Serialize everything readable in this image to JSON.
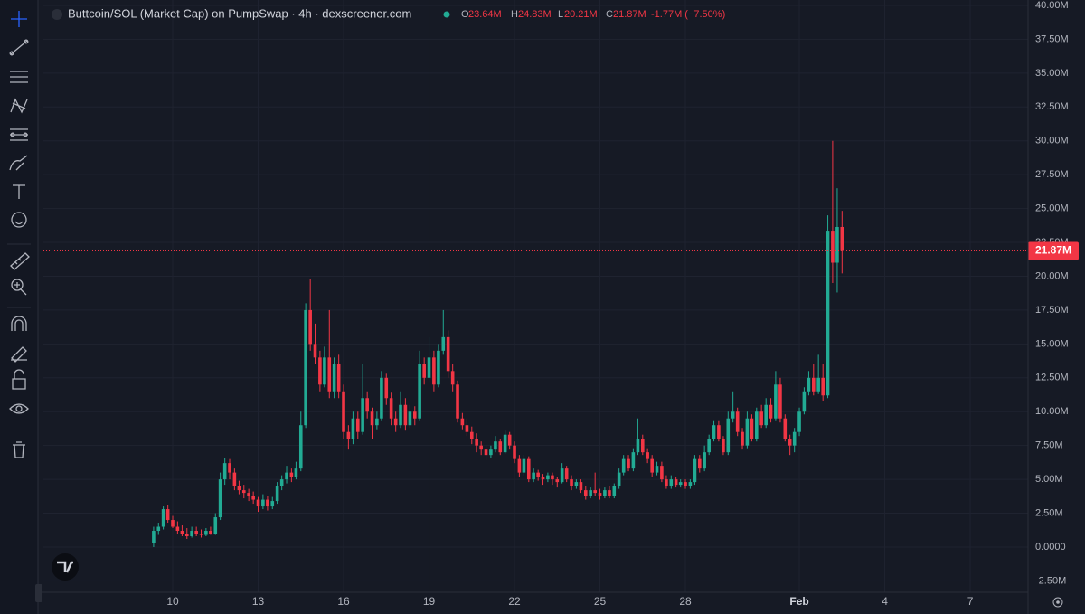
{
  "chart_data": {
    "type": "candlestick",
    "title": "Buttcoin/SOL (Market Cap) on PumpSwap · 4h · dexscreener.com",
    "legend": {
      "o_label": "O",
      "o": "23.64M",
      "h_label": "H",
      "h": "24.83M",
      "l_label": "L",
      "l": "20.21M",
      "c_label": "C",
      "c": "21.87M",
      "change": "-1.77M (−7.50%)"
    },
    "last_price_label": "21.87M",
    "up_color": "#22ab94",
    "down_color": "#f23645",
    "grid": true,
    "xlim": [
      5.46,
      40.03
    ],
    "xticks": [
      10,
      13,
      16,
      19,
      22,
      25,
      28,
      {
        "value": 32,
        "label": "Feb"
      },
      {
        "value": 35,
        "label": "4"
      },
      {
        "value": 38,
        "label": "7"
      }
    ],
    "ylim": [
      -3.34,
      40.4
    ],
    "yticks": [
      {
        "value": -2.5,
        "label": "-2.50M"
      },
      {
        "value": 0,
        "label": "0.0000"
      },
      {
        "value": 2.5,
        "label": "2.50M"
      },
      {
        "value": 5,
        "label": "5.00M"
      },
      {
        "value": 7.5,
        "label": "7.50M"
      },
      {
        "value": 10,
        "label": "10.00M"
      },
      {
        "value": 12.5,
        "label": "12.50M"
      },
      {
        "value": 15,
        "label": "15.00M"
      },
      {
        "value": 17.5,
        "label": "17.50M"
      },
      {
        "value": 20,
        "label": "20.00M"
      },
      {
        "value": 22.5,
        "label": "22.50M"
      },
      {
        "value": 25,
        "label": "25.00M"
      },
      {
        "value": 27.5,
        "label": "27.50M"
      },
      {
        "value": 30,
        "label": "30.00M"
      },
      {
        "value": 32.5,
        "label": "32.50M"
      },
      {
        "value": 35,
        "label": "35.00M"
      },
      {
        "value": 37.5,
        "label": "37.50M"
      },
      {
        "value": 40,
        "label": "40.00M"
      }
    ],
    "x": [
      9.33,
      9.5,
      9.67,
      9.83,
      10,
      10.17,
      10.33,
      10.5,
      10.67,
      10.83,
      11,
      11.17,
      11.33,
      11.5,
      11.67,
      11.83,
      12,
      12.17,
      12.33,
      12.5,
      12.67,
      12.83,
      13,
      13.17,
      13.33,
      13.5,
      13.67,
      13.83,
      14,
      14.17,
      14.33,
      14.5,
      14.67,
      14.83,
      15,
      15.17,
      15.33,
      15.5,
      15.67,
      15.83,
      16,
      16.17,
      16.33,
      16.5,
      16.67,
      16.83,
      17,
      17.17,
      17.33,
      17.5,
      17.67,
      17.83,
      18,
      18.17,
      18.33,
      18.5,
      18.67,
      18.83,
      19,
      19.17,
      19.33,
      19.5,
      19.67,
      19.83,
      20,
      20.17,
      20.33,
      20.5,
      20.67,
      20.83,
      21,
      21.17,
      21.33,
      21.5,
      21.67,
      21.83,
      22,
      22.17,
      22.33,
      22.5,
      22.67,
      22.83,
      23,
      23.17,
      23.33,
      23.5,
      23.67,
      23.83,
      24,
      24.17,
      24.33,
      24.5,
      24.67,
      24.83,
      25,
      25.17,
      25.33,
      25.5,
      25.67,
      25.83,
      26,
      26.17,
      26.33,
      26.5,
      26.67,
      26.83,
      27,
      27.17,
      27.33,
      27.5,
      27.67,
      27.83,
      28,
      28.17,
      28.33,
      28.5,
      28.67,
      28.83,
      29,
      29.17,
      29.33,
      29.5,
      29.67,
      29.83,
      30,
      30.17,
      30.33,
      30.5,
      30.67,
      30.83,
      31,
      31.17,
      31.33,
      31.5,
      31.67,
      31.83,
      32,
      32.17,
      32.33,
      32.5,
      32.67,
      32.83,
      33,
      33.17,
      33.33,
      33.5
    ],
    "ohlc": [
      [
        0.3,
        1.5,
        0.0,
        1.2
      ],
      [
        1.2,
        1.8,
        0.9,
        1.5
      ],
      [
        1.5,
        3.0,
        1.3,
        2.8
      ],
      [
        2.8,
        3.1,
        1.8,
        2.0
      ],
      [
        2.0,
        2.3,
        1.4,
        1.5
      ],
      [
        1.5,
        1.9,
        1.0,
        1.2
      ],
      [
        1.2,
        1.6,
        0.8,
        1.0
      ],
      [
        1.0,
        1.4,
        0.6,
        0.8
      ],
      [
        0.8,
        1.5,
        0.7,
        1.2
      ],
      [
        1.2,
        1.5,
        0.8,
        1.0
      ],
      [
        1.0,
        1.3,
        0.7,
        0.9
      ],
      [
        0.9,
        1.4,
        0.8,
        1.2
      ],
      [
        1.2,
        1.5,
        0.9,
        1.0
      ],
      [
        1.0,
        2.5,
        0.9,
        2.2
      ],
      [
        2.2,
        5.5,
        2.0,
        5.0
      ],
      [
        5.0,
        6.6,
        4.6,
        6.2
      ],
      [
        6.2,
        6.5,
        5.0,
        5.5
      ],
      [
        5.5,
        5.8,
        4.2,
        4.5
      ],
      [
        4.5,
        4.9,
        3.9,
        4.2
      ],
      [
        4.2,
        4.6,
        3.6,
        4.0
      ],
      [
        4.0,
        4.3,
        3.4,
        3.8
      ],
      [
        3.8,
        4.1,
        3.2,
        3.5
      ],
      [
        3.5,
        3.7,
        2.6,
        3.0
      ],
      [
        3.0,
        3.9,
        2.8,
        3.5
      ],
      [
        3.5,
        3.8,
        2.7,
        3.0
      ],
      [
        3.0,
        3.7,
        2.8,
        3.4
      ],
      [
        3.4,
        4.8,
        3.2,
        4.5
      ],
      [
        4.5,
        5.3,
        4.2,
        5.0
      ],
      [
        5.0,
        6.0,
        4.7,
        5.5
      ],
      [
        5.5,
        5.8,
        4.8,
        5.2
      ],
      [
        5.2,
        6.3,
        5.0,
        5.8
      ],
      [
        5.8,
        10.0,
        5.6,
        9.0
      ],
      [
        9.0,
        18.0,
        8.8,
        17.5
      ],
      [
        17.5,
        19.8,
        14.5,
        15.0
      ],
      [
        15.0,
        16.5,
        13.5,
        14.0
      ],
      [
        14.0,
        14.5,
        11.5,
        12.0
      ],
      [
        12.0,
        14.8,
        11.8,
        14.0
      ],
      [
        14.0,
        17.5,
        11.0,
        11.5
      ],
      [
        11.5,
        14.0,
        11.0,
        13.5
      ],
      [
        13.5,
        14.2,
        11.0,
        11.5
      ],
      [
        11.5,
        12.0,
        8.0,
        8.5
      ],
      [
        8.5,
        9.0,
        7.2,
        8.0
      ],
      [
        8.0,
        10.0,
        7.6,
        9.5
      ],
      [
        9.5,
        10.0,
        8.0,
        8.5
      ],
      [
        8.5,
        13.5,
        8.3,
        11.0
      ],
      [
        11.0,
        11.5,
        9.5,
        10.0
      ],
      [
        10.0,
        10.3,
        8.0,
        9.0
      ],
      [
        9.0,
        10.0,
        8.7,
        9.5
      ],
      [
        9.5,
        13.0,
        9.3,
        12.5
      ],
      [
        12.5,
        12.8,
        10.5,
        11.0
      ],
      [
        11.0,
        11.4,
        9.0,
        9.5
      ],
      [
        9.5,
        10.0,
        8.5,
        9.0
      ],
      [
        9.0,
        11.5,
        8.8,
        10.5
      ],
      [
        10.5,
        11.0,
        8.6,
        9.0
      ],
      [
        9.0,
        10.5,
        8.8,
        10.0
      ],
      [
        10.0,
        10.4,
        9.0,
        9.5
      ],
      [
        9.5,
        14.5,
        9.3,
        13.5
      ],
      [
        13.5,
        14.0,
        12.0,
        12.5
      ],
      [
        12.5,
        15.5,
        12.2,
        14.0
      ],
      [
        14.0,
        14.5,
        11.5,
        12.0
      ],
      [
        12.0,
        15.0,
        11.8,
        14.5
      ],
      [
        14.5,
        17.5,
        14.2,
        15.5
      ],
      [
        15.5,
        16.0,
        12.5,
        13.0
      ],
      [
        13.0,
        13.5,
        11.5,
        12.0
      ],
      [
        12.0,
        12.3,
        9.2,
        9.5
      ],
      [
        9.5,
        9.9,
        8.7,
        9.0
      ],
      [
        9.0,
        9.5,
        8.2,
        8.5
      ],
      [
        8.5,
        8.9,
        7.6,
        8.0
      ],
      [
        8.0,
        8.4,
        7.0,
        7.5
      ],
      [
        7.5,
        7.8,
        6.8,
        7.2
      ],
      [
        7.2,
        7.5,
        6.4,
        6.8
      ],
      [
        6.8,
        7.5,
        6.6,
        7.2
      ],
      [
        7.2,
        8.2,
        7.0,
        7.8
      ],
      [
        7.8,
        8.0,
        6.8,
        7.0
      ],
      [
        7.0,
        8.6,
        6.9,
        8.3
      ],
      [
        8.3,
        8.5,
        7.2,
        7.5
      ],
      [
        7.5,
        7.8,
        6.2,
        6.5
      ],
      [
        6.5,
        6.8,
        5.2,
        5.5
      ],
      [
        5.5,
        6.8,
        5.3,
        6.5
      ],
      [
        6.5,
        6.7,
        4.8,
        5.0
      ],
      [
        5.0,
        5.8,
        4.8,
        5.5
      ],
      [
        5.5,
        5.7,
        4.9,
        5.2
      ],
      [
        5.2,
        5.4,
        4.6,
        5.0
      ],
      [
        5.0,
        5.5,
        4.8,
        5.3
      ],
      [
        5.3,
        5.5,
        4.6,
        5.0
      ],
      [
        5.0,
        5.2,
        4.4,
        4.8
      ],
      [
        4.8,
        6.2,
        4.7,
        5.8
      ],
      [
        5.8,
        6.0,
        4.8,
        5.0
      ],
      [
        5.0,
        5.3,
        4.2,
        4.5
      ],
      [
        4.5,
        5.0,
        4.3,
        4.8
      ],
      [
        4.8,
        5.0,
        4.0,
        4.2
      ],
      [
        4.2,
        4.5,
        3.5,
        3.8
      ],
      [
        3.8,
        4.4,
        3.6,
        4.2
      ],
      [
        4.2,
        5.5,
        3.8,
        4.0
      ],
      [
        4.0,
        4.3,
        3.5,
        3.8
      ],
      [
        3.8,
        4.4,
        3.6,
        4.2
      ],
      [
        4.2,
        4.5,
        3.6,
        3.8
      ],
      [
        3.8,
        4.7,
        3.6,
        4.5
      ],
      [
        4.5,
        5.8,
        4.3,
        5.5
      ],
      [
        5.5,
        6.8,
        5.3,
        6.5
      ],
      [
        6.5,
        6.8,
        5.6,
        5.8
      ],
      [
        5.8,
        7.3,
        5.6,
        7.0
      ],
      [
        7.0,
        9.5,
        6.8,
        8.0
      ],
      [
        8.0,
        8.3,
        6.8,
        7.0
      ],
      [
        7.0,
        7.3,
        6.2,
        6.5
      ],
      [
        6.5,
        6.8,
        5.2,
        5.5
      ],
      [
        5.5,
        6.3,
        5.3,
        6.0
      ],
      [
        6.0,
        6.3,
        4.8,
        5.0
      ],
      [
        5.0,
        5.3,
        4.3,
        4.5
      ],
      [
        4.5,
        5.3,
        4.3,
        5.0
      ],
      [
        5.0,
        5.2,
        4.4,
        4.6
      ],
      [
        4.6,
        5.0,
        4.4,
        4.8
      ],
      [
        4.8,
        5.0,
        4.3,
        4.5
      ],
      [
        4.5,
        5.0,
        4.3,
        4.8
      ],
      [
        4.8,
        6.8,
        4.6,
        6.5
      ],
      [
        6.5,
        6.8,
        5.5,
        5.8
      ],
      [
        5.8,
        7.5,
        5.6,
        7.0
      ],
      [
        7.0,
        8.3,
        6.8,
        8.0
      ],
      [
        8.0,
        9.3,
        7.8,
        9.0
      ],
      [
        9.0,
        9.3,
        7.8,
        8.0
      ],
      [
        8.0,
        8.2,
        6.8,
        7.0
      ],
      [
        7.0,
        10.0,
        6.8,
        9.5
      ],
      [
        9.5,
        11.5,
        9.2,
        10.0
      ],
      [
        10.0,
        10.3,
        8.2,
        8.5
      ],
      [
        8.5,
        8.8,
        7.2,
        7.5
      ],
      [
        7.5,
        10.0,
        7.3,
        9.5
      ],
      [
        9.5,
        9.8,
        7.8,
        8.0
      ],
      [
        8.0,
        10.3,
        7.8,
        10.0
      ],
      [
        10.0,
        10.5,
        8.8,
        9.0
      ],
      [
        9.0,
        11.0,
        8.8,
        10.5
      ],
      [
        10.5,
        11.0,
        9.2,
        9.5
      ],
      [
        9.5,
        13.0,
        9.3,
        12.0
      ],
      [
        12.0,
        12.5,
        9.2,
        9.5
      ],
      [
        9.5,
        9.8,
        7.8,
        8.0
      ],
      [
        8.0,
        8.3,
        6.8,
        7.5
      ],
      [
        7.5,
        8.8,
        7.0,
        8.5
      ],
      [
        8.5,
        10.3,
        8.2,
        10.0
      ],
      [
        10.0,
        11.8,
        9.8,
        11.5
      ],
      [
        11.5,
        13.0,
        11.2,
        12.5
      ],
      [
        12.5,
        13.5,
        11.2,
        11.5
      ],
      [
        11.5,
        14.2,
        11.3,
        12.5
      ],
      [
        12.5,
        13.5,
        10.8,
        11.2
      ],
      [
        11.2,
        24.5,
        11.0,
        23.3
      ],
      [
        23.3,
        30.0,
        19.5,
        21.0
      ],
      [
        21.0,
        26.5,
        18.8,
        23.64
      ],
      [
        23.64,
        24.83,
        20.21,
        21.87
      ]
    ]
  }
}
